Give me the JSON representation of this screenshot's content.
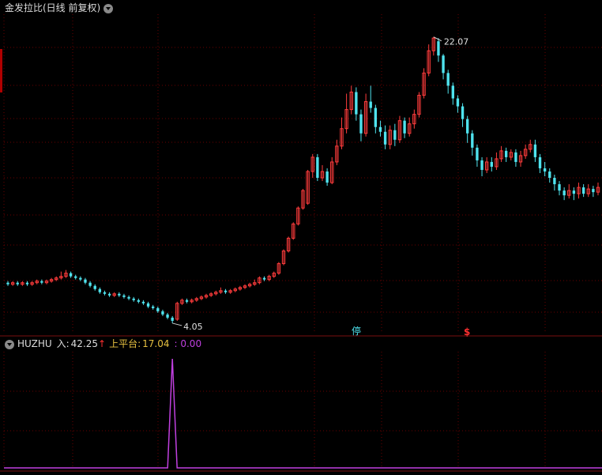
{
  "header": {
    "title": "金发拉比(日线 前复权)"
  },
  "indicator": {
    "name": "HUZHU",
    "in_label": "入:",
    "in_value": "42.25",
    "in_arrow": "↑",
    "platform_label": "上平台:",
    "platform_value": "17.04",
    "third_value": ": 0.00"
  },
  "markers": {
    "limit_up": "停",
    "dollar": "$"
  },
  "colors": {
    "up": "#ff3c3c",
    "down": "#4fe3ee",
    "purple": "#c040e0",
    "grid": "#6a0000",
    "bg": "#000000"
  },
  "chart_data": {
    "type": "candlestick",
    "price_labels": {
      "high": "22.07",
      "low": "4.05"
    },
    "ylim": [
      3.5,
      23.5
    ],
    "candles": [
      [
        6.6,
        6.5,
        6.7,
        6.4
      ],
      [
        6.5,
        6.6,
        6.7,
        6.4
      ],
      [
        6.6,
        6.5,
        6.7,
        6.4
      ],
      [
        6.5,
        6.6,
        6.7,
        6.4
      ],
      [
        6.6,
        6.5,
        6.7,
        6.4
      ],
      [
        6.5,
        6.6,
        6.7,
        6.4
      ],
      [
        6.6,
        6.7,
        6.8,
        6.5
      ],
      [
        6.7,
        6.6,
        6.8,
        6.5
      ],
      [
        6.6,
        6.7,
        6.8,
        6.5
      ],
      [
        6.7,
        6.8,
        6.9,
        6.6
      ],
      [
        6.8,
        6.9,
        7.0,
        6.7
      ],
      [
        6.9,
        7.0,
        7.3,
        6.8
      ],
      [
        7.0,
        7.2,
        7.4,
        6.9
      ],
      [
        7.2,
        7.0,
        7.3,
        6.9
      ],
      [
        7.0,
        6.9,
        7.1,
        6.8
      ],
      [
        6.9,
        6.8,
        7.0,
        6.7
      ],
      [
        6.8,
        6.6,
        6.9,
        6.5
      ],
      [
        6.6,
        6.4,
        6.7,
        6.3
      ],
      [
        6.4,
        6.2,
        6.5,
        6.1
      ],
      [
        6.2,
        6.0,
        6.3,
        5.9
      ],
      [
        6.0,
        5.9,
        6.1,
        5.8
      ],
      [
        5.9,
        5.8,
        6.0,
        5.7
      ],
      [
        5.8,
        5.9,
        6.0,
        5.7
      ],
      [
        5.9,
        5.8,
        6.0,
        5.7
      ],
      [
        5.8,
        5.7,
        5.9,
        5.6
      ],
      [
        5.7,
        5.6,
        5.8,
        5.5
      ],
      [
        5.6,
        5.5,
        5.7,
        5.4
      ],
      [
        5.5,
        5.4,
        5.6,
        5.3
      ],
      [
        5.4,
        5.3,
        5.5,
        5.2
      ],
      [
        5.3,
        5.1,
        5.4,
        5.0
      ],
      [
        5.1,
        5.0,
        5.2,
        4.9
      ],
      [
        5.0,
        4.8,
        5.1,
        4.7
      ],
      [
        4.8,
        4.6,
        4.9,
        4.5
      ],
      [
        4.6,
        4.4,
        4.7,
        4.3
      ],
      [
        4.4,
        4.2,
        4.5,
        4.05
      ],
      [
        4.3,
        5.3,
        5.4,
        4.2
      ],
      [
        5.3,
        5.5,
        5.6,
        5.2
      ],
      [
        5.5,
        5.4,
        5.6,
        5.3
      ],
      [
        5.4,
        5.5,
        5.6,
        5.3
      ],
      [
        5.5,
        5.6,
        5.7,
        5.4
      ],
      [
        5.6,
        5.7,
        5.8,
        5.5
      ],
      [
        5.7,
        5.8,
        5.9,
        5.6
      ],
      [
        5.8,
        5.9,
        6.0,
        5.7
      ],
      [
        5.9,
        6.0,
        6.1,
        5.8
      ],
      [
        6.0,
        6.1,
        6.3,
        5.9
      ],
      [
        6.1,
        6.0,
        6.2,
        5.9
      ],
      [
        6.0,
        6.1,
        6.2,
        5.9
      ],
      [
        6.1,
        6.2,
        6.3,
        6.0
      ],
      [
        6.2,
        6.3,
        6.4,
        6.1
      ],
      [
        6.3,
        6.4,
        6.5,
        6.2
      ],
      [
        6.4,
        6.5,
        6.6,
        6.3
      ],
      [
        6.5,
        6.6,
        6.8,
        6.4
      ],
      [
        6.6,
        6.9,
        7.0,
        6.5
      ],
      [
        6.9,
        6.8,
        7.0,
        6.7
      ],
      [
        6.8,
        7.0,
        7.1,
        6.7
      ],
      [
        7.0,
        7.2,
        7.3,
        6.9
      ],
      [
        7.2,
        7.8,
        7.9,
        7.1
      ],
      [
        7.8,
        8.6,
        8.7,
        7.7
      ],
      [
        8.6,
        9.4,
        9.5,
        8.5
      ],
      [
        9.4,
        10.3,
        10.4,
        9.3
      ],
      [
        10.3,
        11.3,
        11.4,
        10.2
      ],
      [
        11.3,
        12.4,
        12.5,
        11.2
      ],
      [
        11.6,
        13.6,
        13.7,
        11.5
      ],
      [
        13.6,
        14.5,
        14.7,
        13.2
      ],
      [
        14.5,
        13.2,
        14.7,
        13.0
      ],
      [
        13.2,
        13.6,
        14.0,
        13.0
      ],
      [
        13.6,
        12.9,
        13.8,
        12.7
      ],
      [
        12.9,
        14.2,
        14.5,
        12.8
      ],
      [
        14.2,
        15.2,
        15.6,
        14.0
      ],
      [
        15.2,
        16.3,
        17.0,
        15.0
      ],
      [
        16.3,
        17.5,
        18.5,
        16.0
      ],
      [
        17.5,
        18.6,
        19.0,
        17.2
      ],
      [
        18.6,
        17.2,
        18.9,
        16.8
      ],
      [
        17.2,
        16.0,
        17.5,
        15.5
      ],
      [
        16.0,
        18.0,
        18.5,
        15.8
      ],
      [
        18.0,
        17.6,
        19.0,
        17.3
      ],
      [
        17.6,
        16.4,
        17.8,
        16.0
      ],
      [
        16.4,
        16.1,
        16.8,
        15.8
      ],
      [
        16.1,
        15.3,
        16.5,
        15.0
      ],
      [
        15.3,
        16.2,
        16.5,
        15.0
      ],
      [
        16.2,
        15.6,
        16.6,
        15.2
      ],
      [
        15.6,
        16.8,
        17.1,
        15.4
      ],
      [
        16.8,
        16.0,
        17.0,
        15.7
      ],
      [
        16.0,
        16.6,
        17.0,
        15.8
      ],
      [
        16.6,
        17.2,
        17.5,
        16.3
      ],
      [
        17.2,
        18.4,
        18.6,
        17.0
      ],
      [
        18.4,
        19.8,
        20.1,
        18.2
      ],
      [
        19.8,
        21.2,
        21.6,
        19.6
      ],
      [
        21.2,
        22.0,
        22.07,
        20.9
      ],
      [
        21.8,
        20.9,
        22.0,
        20.5
      ],
      [
        20.9,
        19.8,
        21.0,
        19.4
      ],
      [
        19.8,
        19.0,
        20.0,
        18.5
      ],
      [
        19.0,
        18.2,
        19.2,
        17.8
      ],
      [
        18.2,
        17.7,
        18.4,
        17.3
      ],
      [
        17.7,
        16.9,
        17.9,
        16.4
      ],
      [
        16.9,
        16.0,
        17.1,
        15.4
      ],
      [
        16.0,
        15.1,
        16.2,
        14.6
      ],
      [
        15.1,
        14.3,
        15.3,
        13.9
      ],
      [
        14.3,
        13.7,
        14.5,
        13.3
      ],
      [
        13.7,
        14.2,
        14.5,
        13.5
      ],
      [
        14.2,
        13.9,
        14.5,
        13.6
      ],
      [
        13.9,
        14.4,
        14.8,
        13.7
      ],
      [
        14.4,
        14.9,
        15.2,
        14.2
      ],
      [
        14.9,
        14.5,
        15.1,
        14.2
      ],
      [
        14.5,
        14.8,
        15.0,
        14.3
      ],
      [
        14.8,
        14.2,
        15.0,
        13.9
      ],
      [
        14.2,
        14.6,
        14.9,
        13.9
      ],
      [
        14.6,
        15.0,
        15.3,
        14.4
      ],
      [
        15.0,
        15.3,
        15.6,
        14.8
      ],
      [
        15.3,
        14.5,
        15.6,
        14.2
      ],
      [
        14.5,
        13.8,
        14.7,
        13.5
      ],
      [
        13.8,
        13.6,
        14.2,
        13.3
      ],
      [
        13.6,
        13.2,
        13.8,
        12.9
      ],
      [
        13.2,
        12.8,
        13.4,
        12.4
      ],
      [
        12.8,
        12.4,
        13.0,
        12.1
      ],
      [
        12.4,
        12.1,
        12.6,
        11.8
      ],
      [
        12.1,
        12.4,
        12.8,
        11.9
      ],
      [
        12.4,
        12.2,
        12.6,
        11.8
      ],
      [
        12.2,
        12.6,
        12.9,
        11.9
      ],
      [
        12.6,
        12.2,
        12.8,
        12.0
      ],
      [
        12.2,
        12.5,
        12.8,
        12.0
      ],
      [
        12.5,
        12.3,
        12.7,
        12.0
      ],
      [
        12.3,
        12.6,
        12.9,
        12.1
      ]
    ],
    "indicator_series": {
      "name": "HUZHU",
      "type": "line",
      "color": "#c040e0",
      "spike_index": 34,
      "spike_value": 42.25,
      "ylim": [
        0,
        45
      ]
    }
  }
}
